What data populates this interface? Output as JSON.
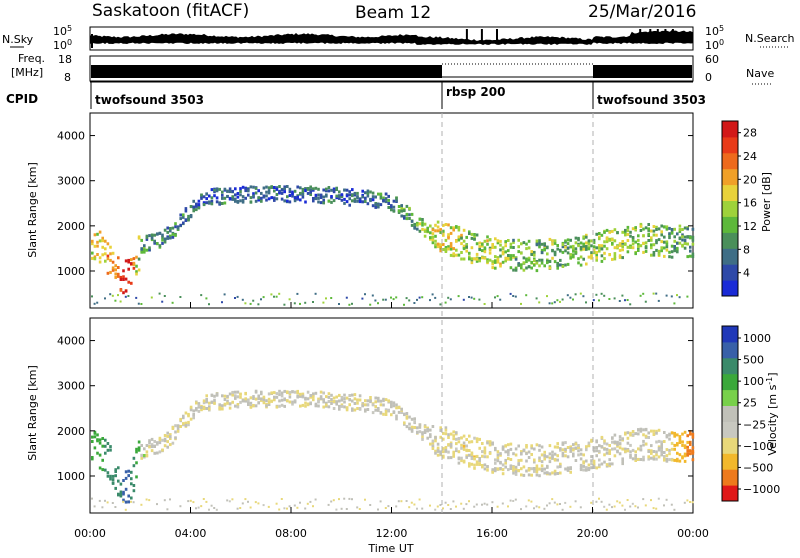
{
  "header": {
    "title": "Saskatoon (fitACF)",
    "beam": "Beam 12",
    "date": "25/Mar/2016"
  },
  "side_labels": {
    "nsky": "N.Sky",
    "freq_line1": "Freq.",
    "freq_line2": "[MHz]",
    "cpid": "CPID",
    "nsearch": "N.Search",
    "nave": "Nave"
  },
  "noise_panel": {
    "left_ticks": [
      "10^5",
      "10^0"
    ],
    "right_ticks": [
      "10^5",
      "10^0"
    ]
  },
  "freq_panel": {
    "left_ticks": [
      "18",
      "8"
    ],
    "right_ticks": [
      "60",
      "0"
    ]
  },
  "cpid_segments": [
    {
      "label": "twofsound 3503",
      "start_hour": 0
    },
    {
      "label": "rbsp 200",
      "start_hour": 14
    },
    {
      "label": "twofsound 3503",
      "start_hour": 20
    }
  ],
  "colors": {
    "power_scale": [
      "#1a2bd6",
      "#2e49a8",
      "#3f6e86",
      "#4a8f5a",
      "#5db83a",
      "#9ed23a",
      "#e8d23a",
      "#f0a028",
      "#ee6a1c",
      "#e83a18",
      "#d21818"
    ],
    "velocity_scale": [
      "#e01818",
      "#ee7a1c",
      "#f2b82c",
      "#e8d87a",
      "#c8c8c0",
      "#c0c0b8",
      "#78d04a",
      "#3aa83a",
      "#3a8a6a",
      "#3860a8",
      "#2038b8"
    ]
  },
  "chart_data": [
    {
      "type": "heatmap",
      "title": "",
      "xlabel": "",
      "ylabel": "Slant Range [km]",
      "xlim": [
        0,
        24
      ],
      "ylim": [
        180,
        4500
      ],
      "y_ticks": [
        "1000",
        "2000",
        "3000",
        "4000"
      ],
      "colorbar": {
        "label": "Power [dB]",
        "ticks": [
          "4",
          "8",
          "12",
          "16",
          "20",
          "24",
          "28"
        ],
        "range": [
          0,
          30
        ]
      },
      "scatter_trace": {
        "hours": [
          0.0,
          0.5,
          1.0,
          1.5,
          2.0,
          2.5,
          3.0,
          3.5,
          4.0,
          4.5,
          5.0,
          6.0,
          7.0,
          8.0,
          9.0,
          10.0,
          11.0,
          12.0,
          12.5,
          13.0,
          13.5,
          14.0,
          15.0,
          16.0,
          17.0,
          18.0,
          19.0,
          20.0,
          21.0,
          22.0,
          23.0,
          24.0
        ],
        "range_km": [
          1600,
          1500,
          1000,
          800,
          1550,
          1650,
          1750,
          2050,
          2400,
          2600,
          2650,
          2700,
          2700,
          2700,
          2700,
          2650,
          2600,
          2500,
          2300,
          2050,
          1850,
          1750,
          1550,
          1400,
          1350,
          1350,
          1400,
          1500,
          1600,
          1700,
          1650,
          1650
        ],
        "power_db": [
          16,
          18,
          24,
          28,
          10,
          8,
          8,
          8,
          6,
          6,
          6,
          6,
          6,
          6,
          6,
          6,
          6,
          8,
          10,
          12,
          16,
          18,
          14,
          16,
          12,
          12,
          12,
          14,
          14,
          14,
          12,
          10
        ]
      }
    },
    {
      "type": "heatmap",
      "title": "",
      "xlabel": "Time UT",
      "ylabel": "Slant Range [km]",
      "xlim": [
        0,
        24
      ],
      "ylim": [
        180,
        4500
      ],
      "x_ticks": [
        "00:00",
        "04:00",
        "08:00",
        "12:00",
        "16:00",
        "20:00",
        "00:00"
      ],
      "y_ticks": [
        "1000",
        "2000",
        "3000",
        "4000"
      ],
      "colorbar": {
        "label": "Velocity [m s^-1]",
        "ticks": [
          "1000",
          "500",
          "100",
          "25",
          "−25",
          "−100",
          "−500",
          "−1000"
        ],
        "range": [
          -1000,
          1000
        ]
      },
      "scatter_trace": {
        "hours": [
          0.0,
          0.5,
          1.0,
          1.5,
          2.0,
          2.5,
          3.0,
          3.5,
          4.0,
          4.5,
          5.0,
          6.0,
          7.0,
          8.0,
          9.0,
          10.0,
          11.0,
          12.0,
          12.5,
          13.0,
          13.5,
          14.0,
          15.0,
          16.0,
          17.0,
          18.0,
          19.0,
          20.0,
          21.0,
          22.0,
          23.0,
          24.0
        ],
        "range_km": [
          1600,
          1500,
          1000,
          800,
          1550,
          1650,
          1750,
          2050,
          2400,
          2600,
          2650,
          2700,
          2700,
          2700,
          2700,
          2650,
          2600,
          2500,
          2300,
          2050,
          1850,
          1750,
          1550,
          1400,
          1350,
          1350,
          1400,
          1500,
          1600,
          1700,
          1650,
          1650
        ],
        "velocity": [
          120,
          300,
          400,
          600,
          10,
          0,
          0,
          0,
          0,
          0,
          0,
          0,
          0,
          0,
          0,
          0,
          0,
          0,
          0,
          0,
          0,
          0,
          -10,
          0,
          0,
          0,
          0,
          0,
          0,
          0,
          0,
          -150
        ]
      }
    }
  ]
}
